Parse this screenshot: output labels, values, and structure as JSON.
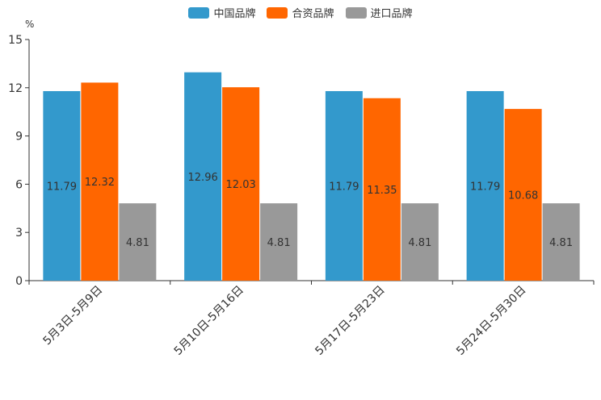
{
  "chart_data": {
    "type": "bar",
    "unit": "%",
    "categories": [
      "5月3日-5月9日",
      "5月10日-5月16日",
      "5月17日-5月23日",
      "5月24日-5月30日"
    ],
    "series": [
      {
        "name": "中国品牌",
        "color": "#3399cc",
        "values": [
          11.79,
          12.96,
          11.79,
          11.79
        ],
        "labels": [
          "11.79",
          "12.96",
          "11.79",
          "11.79"
        ]
      },
      {
        "name": "合资品牌",
        "color": "#ff6600",
        "values": [
          12.32,
          12.03,
          11.35,
          10.68
        ],
        "labels": [
          "12.32",
          "12.03",
          "11.35",
          "10.68"
        ]
      },
      {
        "name": "进口品牌",
        "color": "#999999",
        "values": [
          4.81,
          4.81,
          4.81,
          4.81
        ],
        "labels": [
          "4.81",
          "4.81",
          "4.81",
          "4.81"
        ]
      }
    ],
    "ylim": [
      0,
      15
    ],
    "yticks": [
      "0",
      "3",
      "6",
      "9",
      "12",
      "15"
    ],
    "legend_position": "top-center"
  }
}
